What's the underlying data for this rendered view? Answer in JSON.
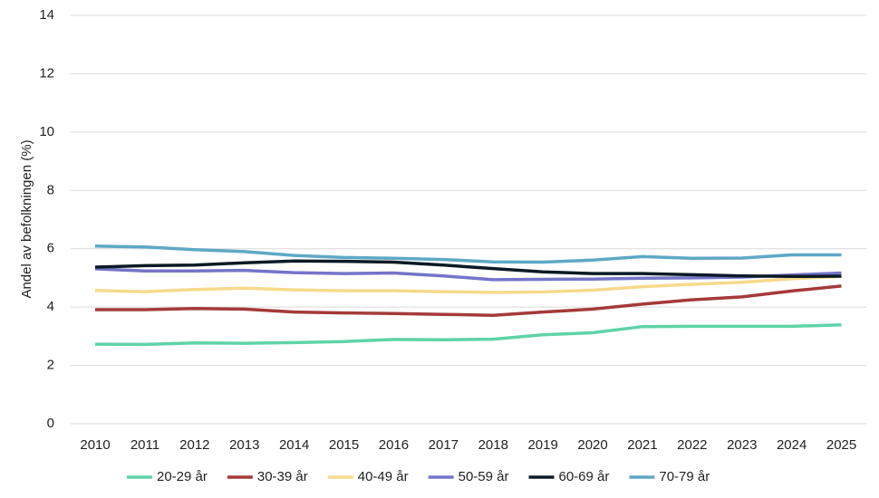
{
  "chart_data": {
    "type": "line",
    "y_label": "Andel av befolkningen (%)",
    "categories": [
      "2010",
      "2011",
      "2012",
      "2013",
      "2014",
      "2015",
      "2016",
      "2017",
      "2018",
      "2019",
      "2020",
      "2021",
      "2022",
      "2023",
      "2024",
      "2025"
    ],
    "series": [
      {
        "name": "20-29 år",
        "color": "#5fd3a8",
        "values": [
          2.73,
          2.72,
          2.77,
          2.76,
          2.78,
          2.82,
          2.89,
          2.88,
          2.9,
          3.05,
          3.12,
          3.33,
          3.34,
          3.34,
          3.34,
          3.39
        ]
      },
      {
        "name": "30-39 år",
        "color": "#a53a3a",
        "values": [
          3.91,
          3.91,
          3.95,
          3.93,
          3.83,
          3.8,
          3.78,
          3.75,
          3.72,
          3.83,
          3.93,
          4.1,
          4.25,
          4.35,
          4.55,
          4.72
        ]
      },
      {
        "name": "40-49 år",
        "color": "#f6d98a",
        "values": [
          4.57,
          4.53,
          4.6,
          4.65,
          4.59,
          4.56,
          4.56,
          4.53,
          4.5,
          4.52,
          4.58,
          4.7,
          4.78,
          4.85,
          4.97,
          5.05
        ]
      },
      {
        "name": "50-59 år",
        "color": "#7474c9",
        "values": [
          5.31,
          5.24,
          5.24,
          5.26,
          5.18,
          5.15,
          5.17,
          5.07,
          4.94,
          4.95,
          4.96,
          4.99,
          5.0,
          5.03,
          5.1,
          5.17
        ]
      },
      {
        "name": "60-69 år",
        "color": "#0b1a24",
        "values": [
          5.37,
          5.42,
          5.44,
          5.52,
          5.58,
          5.57,
          5.54,
          5.44,
          5.32,
          5.21,
          5.15,
          5.15,
          5.11,
          5.07,
          5.05,
          5.06
        ]
      },
      {
        "name": "70-79 år",
        "color": "#5ea8c6",
        "values": [
          6.09,
          6.06,
          5.97,
          5.9,
          5.77,
          5.7,
          5.67,
          5.63,
          5.55,
          5.54,
          5.61,
          5.73,
          5.67,
          5.68,
          5.79,
          5.79
        ]
      }
    ],
    "ylim": [
      0,
      14
    ],
    "yticks": [
      0,
      2,
      4,
      6,
      8,
      10,
      12,
      14
    ],
    "grid": true,
    "legend": "bottom"
  }
}
